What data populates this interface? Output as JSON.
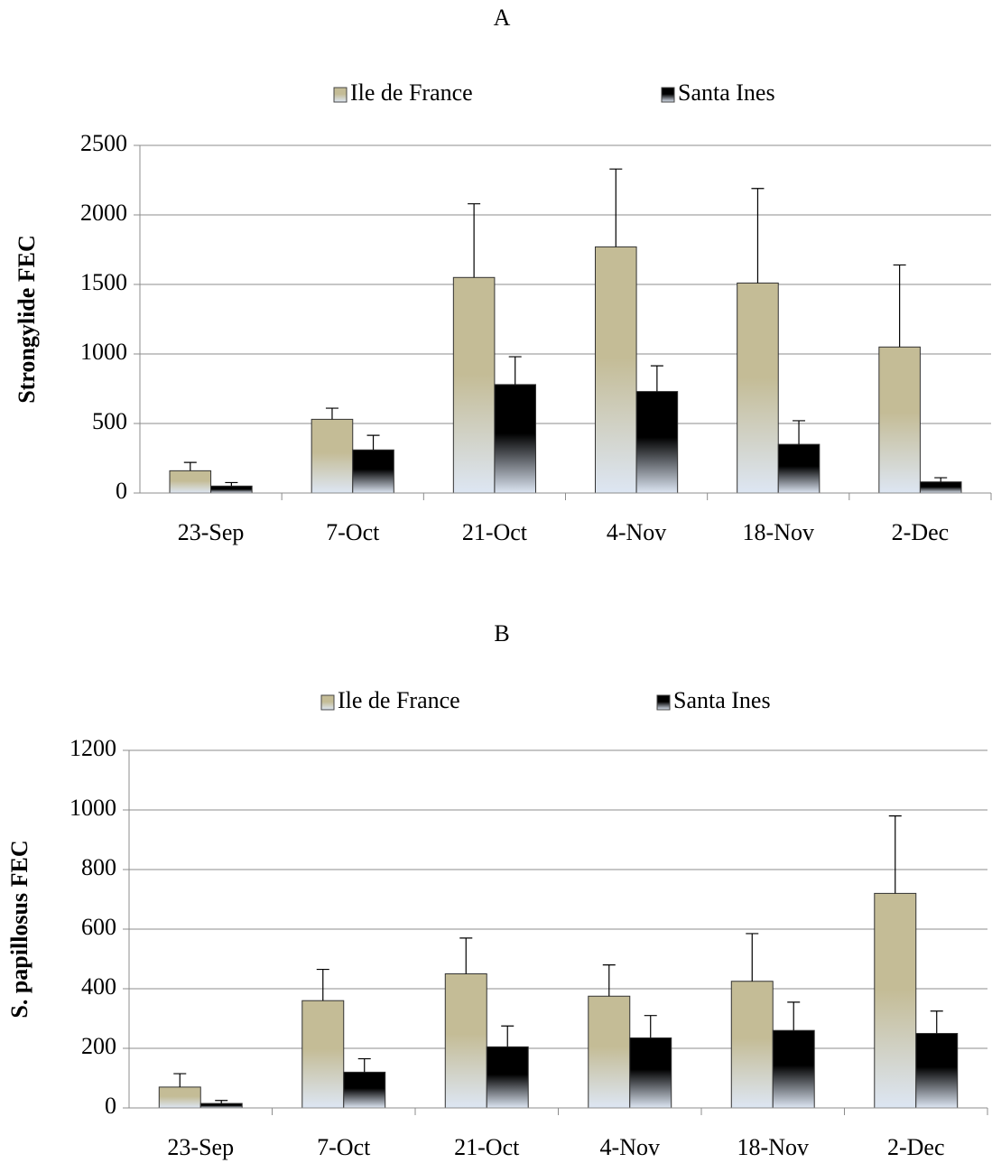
{
  "chart_data": [
    {
      "type": "bar",
      "title": "A",
      "ylabel": "Strongylide FEC",
      "categories": [
        "23-Sep",
        "7-Oct",
        "21-Oct",
        "4-Nov",
        "18-Nov",
        "2-Dec"
      ],
      "series": [
        {
          "name": "Ile de France",
          "color": "#c4bc96",
          "values": [
            160,
            530,
            1550,
            1770,
            1510,
            1050
          ],
          "errors": [
            60,
            80,
            530,
            560,
            680,
            590
          ]
        },
        {
          "name": "Santa Ines",
          "color": "#000000",
          "values": [
            50,
            310,
            780,
            730,
            350,
            80
          ],
          "errors": [
            25,
            105,
            200,
            185,
            170,
            30
          ]
        }
      ],
      "ylim": [
        0,
        2500
      ],
      "yticks": [
        0,
        500,
        1000,
        1500,
        2000,
        2500
      ],
      "grid": true
    },
    {
      "type": "bar",
      "title": "B",
      "ylabel": "S. papillosus FEC",
      "categories": [
        "23-Sep",
        "7-Oct",
        "21-Oct",
        "4-Nov",
        "18-Nov",
        "2-Dec"
      ],
      "series": [
        {
          "name": "Ile de France",
          "color": "#c4bc96",
          "values": [
            70,
            360,
            450,
            375,
            425,
            720
          ],
          "errors": [
            45,
            105,
            120,
            105,
            160,
            260
          ]
        },
        {
          "name": "Santa Ines",
          "color": "#000000",
          "values": [
            15,
            120,
            205,
            235,
            260,
            250
          ],
          "errors": [
            10,
            45,
            70,
            75,
            95,
            75
          ]
        }
      ],
      "ylim": [
        0,
        1200
      ],
      "yticks": [
        0,
        200,
        400,
        600,
        800,
        1000,
        1200
      ],
      "grid": true
    }
  ]
}
